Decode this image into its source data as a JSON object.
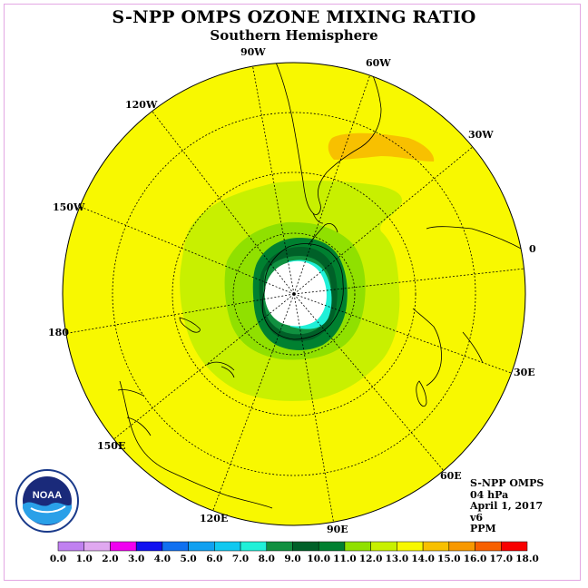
{
  "title": "S-NPP OMPS OZONE MIXING RATIO",
  "subtitle": "Southern Hemisphere",
  "longitude_labels": {
    "w90": "90W",
    "w60": "60W",
    "w30": "30W",
    "e0": "0",
    "e30": "30E",
    "e60": "60E",
    "e90": "90E",
    "e120": "120E",
    "e150": "150E",
    "e180": "180",
    "w150": "150W",
    "w120": "120W"
  },
  "info": {
    "instrument": "S-NPP OMPS",
    "pressure": "04 hPa",
    "date": "April 1, 2017",
    "version": "v6",
    "units": "PPM"
  },
  "logo": {
    "text": "NOAA"
  },
  "colorbar": {
    "labels": [
      "0.0",
      "1.0",
      "2.0",
      "3.0",
      "4.0",
      "5.0",
      "6.0",
      "7.0",
      "8.0",
      "9.0",
      "10.0",
      "11.0",
      "12.0",
      "13.0",
      "14.0",
      "15.0",
      "16.0",
      "17.0",
      "18.0"
    ],
    "colors": [
      "#c080f0",
      "#e0a8f0",
      "#f000f0",
      "#1010f0",
      "#1070f0",
      "#10a0f0",
      "#10c8f0",
      "#20f0d8",
      "#109040",
      "#006028",
      "#008030",
      "#90e000",
      "#c8f000",
      "#f8f800",
      "#f8c000",
      "#f89800",
      "#f86000",
      "#f80000",
      "#805030"
    ]
  }
}
